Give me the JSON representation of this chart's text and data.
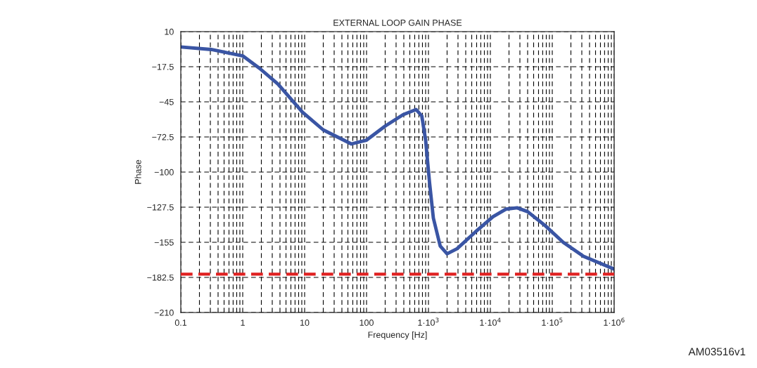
{
  "chart_data": {
    "type": "line",
    "title": "EXTERNAL LOOP GAIN PHASE",
    "xlabel": "Frequency [Hz]",
    "ylabel": "Phase",
    "log": "x",
    "grid": true,
    "legend": false,
    "xlim": [
      0.1,
      1000000
    ],
    "xticks": [
      0.1,
      1,
      10,
      100,
      {
        "value": 1000,
        "label": "1·10$^{3}$"
      },
      {
        "value": 10000,
        "label": "1·10$^{4}$"
      },
      {
        "value": 100000,
        "label": "1·10$^{5}$"
      },
      {
        "value": 1000000,
        "label": "1·10$^{6}$"
      }
    ],
    "ylim": [
      -210,
      10
    ],
    "yticks": [
      10,
      -17.5,
      -45,
      -72.5,
      -100,
      -127.5,
      -155,
      -182.5,
      -210
    ],
    "series": [
      {
        "color": "#3a55a4",
        "x": [
          0.1,
          0.31,
          1.0,
          1.9,
          3.7,
          9.2,
          20,
          57,
          100,
          200,
          390,
          630,
          780,
          900,
          1040,
          1200,
          1550,
          2000,
          2900,
          5700,
          11000,
          18000,
          27000,
          40000,
          77000,
          150000,
          320000,
          1000000
        ],
        "values": [
          -2,
          -4,
          -9,
          -19,
          -31,
          -53,
          -67,
          -78,
          -75,
          -64,
          -55,
          -51,
          -56,
          -75,
          -108,
          -136,
          -158,
          -164,
          -160,
          -147,
          -135,
          -129,
          -128,
          -131,
          -142,
          -155,
          -166,
          -176
        ]
      }
    ],
    "ref_lines": [
      {
        "axis": "y",
        "value": -180,
        "color": "#e02020",
        "line_style": "dashed"
      }
    ],
    "annotations": [
      "AM03516v1"
    ]
  }
}
